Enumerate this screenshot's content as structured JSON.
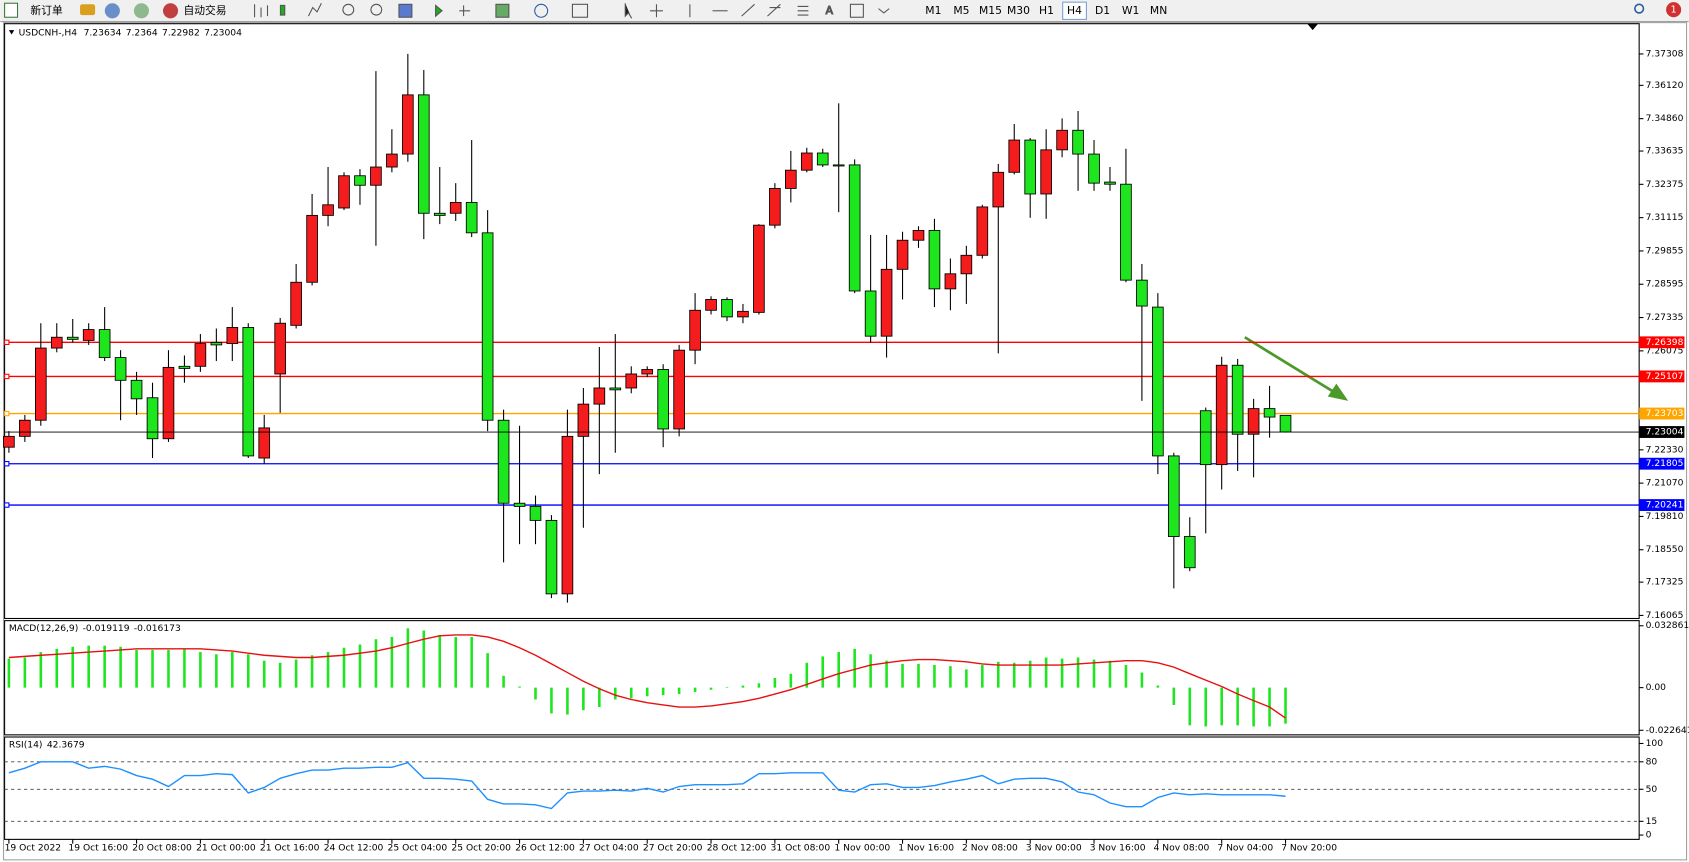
{
  "toolbar": {
    "new_order": "新订单",
    "auto_trading": "自动交易",
    "timeframes": [
      "M1",
      "M5",
      "M15",
      "M30",
      "H1",
      "H4",
      "D1",
      "W1",
      "MN"
    ],
    "alert_count": 1
  },
  "chart_data": [
    {
      "type": "candlestick",
      "title": "USDCNH-,H4",
      "categories": [
        "19 Oct 2022",
        null,
        null,
        null,
        "19 Oct 16:00",
        null,
        null,
        null,
        "20 Oct 08:00",
        null,
        null,
        null,
        "21 Oct 00:00",
        null,
        null,
        null,
        "21 Oct 16:00",
        null,
        null,
        null,
        "24 Oct 12:00",
        null,
        null,
        null,
        "25 Oct 04:00",
        null,
        null,
        null,
        "25 Oct 20:00",
        null,
        null,
        null,
        "26 Oct 12:00",
        null,
        null,
        null,
        "27 Oct 04:00",
        null,
        null,
        null,
        "27 Oct 20:00",
        null,
        null,
        null,
        "28 Oct 12:00",
        null,
        null,
        null,
        "31 Oct 08:00",
        null,
        null,
        null,
        "1 Nov 00:00",
        null,
        null,
        null,
        "1 Nov 16:00",
        null,
        null,
        null,
        "2 Nov 08:00",
        null,
        null,
        null,
        "3 Nov 00:00",
        null,
        null,
        null,
        "3 Nov 16:00",
        null,
        null,
        null,
        "4 Nov 08:00",
        null,
        null,
        null,
        "7 Nov 04:00",
        null,
        null,
        null,
        "7 Nov 20:00"
      ],
      "open": [
        7.2243,
        7.2284,
        7.2345,
        7.2618,
        7.2659,
        7.2647,
        7.2688,
        7.2582,
        7.2496,
        7.243,
        7.2275,
        7.2549,
        7.2549,
        7.2639,
        7.2635,
        7.2696,
        7.2202,
        7.252,
        7.2704,
        7.2867,
        7.312,
        7.3148,
        7.327,
        7.3234,
        7.3303,
        7.3352,
        7.3576,
        7.3128,
        7.3128,
        7.3169,
        7.3054,
        7.2345,
        7.2031,
        7.2019,
        7.1966,
        7.1688,
        7.2284,
        7.2406,
        7.2467,
        7.2467,
        7.252,
        7.2537,
        7.2312,
        7.261,
        7.2761,
        7.2802,
        7.2736,
        7.2753,
        7.3083,
        7.3222,
        7.3291,
        7.3356,
        7.3311,
        7.3311,
        7.2834,
        7.2663,
        7.2916,
        7.3026,
        7.3063,
        7.2842,
        7.2899,
        7.2969,
        7.3152,
        7.3283,
        7.3405,
        7.3201,
        7.3368,
        7.3442,
        7.3352,
        7.3246,
        7.3238,
        7.2875,
        7.2773,
        7.221,
        7.1905,
        7.2381,
        7.2177,
        7.2553,
        7.2292,
        7.2389,
        7.23634
      ],
      "high": [
        7.2304,
        7.2365,
        7.2712,
        7.2712,
        7.2728,
        7.2712,
        7.2773,
        7.261,
        7.2528,
        7.2487,
        7.261,
        7.259,
        7.2671,
        7.2692,
        7.2773,
        7.2712,
        7.2365,
        7.2732,
        7.2936,
        7.3201,
        7.3303,
        7.3283,
        7.3295,
        7.3666,
        7.3446,
        7.3731,
        7.367,
        7.3303,
        7.3242,
        7.3405,
        7.314,
        7.2385,
        7.2324,
        7.206,
        7.1986,
        7.2385,
        7.2467,
        7.2622,
        7.2671,
        7.2549,
        7.2549,
        7.2557,
        7.263,
        7.2826,
        7.2814,
        7.281,
        7.2785,
        7.3087,
        7.3242,
        7.3364,
        7.3376,
        7.3372,
        7.3544,
        7.3332,
        7.3046,
        7.3046,
        7.3058,
        7.3079,
        7.3107,
        7.2957,
        7.3005,
        7.316,
        7.3315,
        7.3466,
        7.3413,
        7.3446,
        7.3487,
        7.3515,
        7.3405,
        7.3303,
        7.3372,
        7.2936,
        7.2826,
        7.2222,
        7.1978,
        7.2393,
        7.2585,
        7.2577,
        7.2426,
        7.2475,
        7.2364
      ],
      "low": [
        7.2222,
        7.2263,
        7.2324,
        7.2602,
        7.2639,
        7.263,
        7.2569,
        7.2345,
        7.2365,
        7.2202,
        7.2263,
        7.2487,
        7.2528,
        7.2569,
        7.2569,
        7.2202,
        7.2181,
        7.2373,
        7.2692,
        7.2855,
        7.3079,
        7.314,
        7.316,
        7.3005,
        7.3283,
        7.3323,
        7.303,
        7.3087,
        7.3099,
        7.3038,
        7.2304,
        7.1807,
        7.1876,
        7.1876,
        7.1672,
        7.1655,
        7.1938,
        7.2141,
        7.2222,
        7.2447,
        7.2508,
        7.2243,
        7.2284,
        7.2557,
        7.2745,
        7.272,
        7.2712,
        7.2745,
        7.3071,
        7.3169,
        7.3283,
        7.3303,
        7.3132,
        7.2826,
        7.2639,
        7.2582,
        7.2802,
        7.2997,
        7.2773,
        7.2761,
        7.2785,
        7.2957,
        7.2598,
        7.3275,
        7.3111,
        7.3107,
        7.334,
        7.3213,
        7.3213,
        7.3213,
        7.2867,
        7.2418,
        7.2141,
        7.1709,
        7.1774,
        7.1917,
        7.2083,
        7.2153,
        7.2129,
        7.2279,
        7.22982
      ],
      "close": [
        7.2284,
        7.2345,
        7.2618,
        7.2659,
        7.2651,
        7.2688,
        7.2582,
        7.2496,
        7.2426,
        7.2275,
        7.2545,
        7.2541,
        7.2635,
        7.263,
        7.2696,
        7.221,
        7.2316,
        7.2712,
        7.2867,
        7.312,
        7.316,
        7.327,
        7.3234,
        7.3303,
        7.3352,
        7.3576,
        7.3128,
        7.312,
        7.3169,
        7.3054,
        7.2345,
        7.2031,
        7.2019,
        7.1966,
        7.1688,
        7.2284,
        7.2406,
        7.2467,
        7.246,
        7.252,
        7.2537,
        7.2312,
        7.261,
        7.2761,
        7.2802,
        7.2736,
        7.2757,
        7.3083,
        7.3222,
        7.3291,
        7.3356,
        7.3311,
        7.3307,
        7.2834,
        7.2663,
        7.2916,
        7.3026,
        7.3063,
        7.2842,
        7.2899,
        7.2969,
        7.3152,
        7.3283,
        7.3405,
        7.3201,
        7.3368,
        7.3442,
        7.3352,
        7.3242,
        7.3238,
        7.2875,
        7.2777,
        7.221,
        7.1905,
        7.1787,
        7.2177,
        7.2553,
        7.2292,
        7.2389,
        7.2357,
        7.23004
      ],
      "up_color": "#f41c1c",
      "down_color": "#1ee61e",
      "levels": [
        {
          "value": 7.26398,
          "color": "#ff0000"
        },
        {
          "value": 7.25107,
          "color": "#ff0000"
        },
        {
          "value": 7.23703,
          "color": "#ffa500"
        },
        {
          "value": 7.21805,
          "color": "#0000ff"
        },
        {
          "value": 7.20241,
          "color": "#0000ff"
        }
      ],
      "ylim": [
        7.1599,
        7.378
      ],
      "yticks": [
        7.37308,
        {
          "value": 7.3612,
          "label": "7.36120"
        },
        {
          "value": 7.3486,
          "label": "7.34860"
        },
        7.33635,
        7.32375,
        7.31115,
        7.29855,
        7.28595,
        7.27335,
        7.26075,
        {
          "value": 7.2233,
          "label": "7.22330"
        },
        {
          "value": 7.2107,
          "label": "7.21070"
        },
        {
          "value": 7.1981,
          "label": "7.19810"
        },
        {
          "value": 7.1855,
          "label": "7.18550"
        },
        7.17325,
        7.16065
      ]
    },
    {
      "type": "macd",
      "title": "MACD(12,26,9)",
      "values": [
        0.0154,
        0.016,
        0.0189,
        0.0206,
        0.0217,
        0.0223,
        0.0223,
        0.0217,
        0.02,
        0.02,
        0.02,
        0.0206,
        0.0189,
        0.0177,
        0.0189,
        0.0177,
        0.0143,
        0.0132,
        0.0149,
        0.0172,
        0.0189,
        0.0212,
        0.0229,
        0.0257,
        0.0269,
        0.0315,
        0.0303,
        0.028,
        0.0269,
        0.0269,
        0.0183,
        0.0063,
        0.0006,
        -0.0063,
        -0.0137,
        -0.0143,
        -0.012,
        -0.0103,
        -0.0063,
        -0.0057,
        -0.0046,
        -0.004,
        -0.0034,
        -0.0023,
        -0.0011,
        0.0003,
        0.0011,
        0.0023,
        0.0051,
        0.0074,
        0.0132,
        0.0166,
        0.0189,
        0.0206,
        0.0177,
        0.0143,
        0.0126,
        0.0126,
        0.012,
        0.0114,
        0.0097,
        0.012,
        0.0137,
        0.0132,
        0.0143,
        0.016,
        0.0154,
        0.016,
        0.0149,
        0.0143,
        0.012,
        0.008,
        0.0011,
        -0.0092,
        -0.02,
        -0.0206,
        -0.02,
        -0.02,
        -0.0206,
        -0.0206,
        -0.019119
      ],
      "signal": [
        0.016,
        0.0166,
        0.0172,
        0.0177,
        0.0183,
        0.0189,
        0.0194,
        0.02,
        0.0206,
        0.0206,
        0.0206,
        0.0206,
        0.0206,
        0.02,
        0.0194,
        0.0183,
        0.0172,
        0.0166,
        0.016,
        0.016,
        0.0166,
        0.0172,
        0.0183,
        0.0194,
        0.0212,
        0.0235,
        0.0257,
        0.0275,
        0.028,
        0.028,
        0.0269,
        0.0246,
        0.0212,
        0.0172,
        0.0126,
        0.008,
        0.0034,
        -0.0006,
        -0.004,
        -0.0063,
        -0.008,
        -0.0092,
        -0.0103,
        -0.0103,
        -0.0097,
        -0.0086,
        -0.0074,
        -0.0057,
        -0.0034,
        -0.0011,
        0.0017,
        0.0046,
        0.0074,
        0.0097,
        0.012,
        0.0132,
        0.0143,
        0.0149,
        0.0149,
        0.0143,
        0.0137,
        0.0126,
        0.012,
        0.012,
        0.012,
        0.012,
        0.012,
        0.0126,
        0.0132,
        0.0137,
        0.0143,
        0.0143,
        0.0132,
        0.0109,
        0.0074,
        0.004,
        0.0006,
        -0.0034,
        -0.0069,
        -0.0103,
        -0.016173
      ],
      "color": "#1ee61e",
      "signal_color": "#e81010",
      "ylim": [
        -0.0245,
        0.035
      ],
      "yticks": [
        0.032861,
        {
          "value": 0,
          "label": "0.00"
        },
        -0.022641
      ]
    },
    {
      "type": "line",
      "title": "RSI(14)",
      "values": [
        68,
        73,
        80,
        80,
        80,
        73,
        75,
        72,
        65,
        61,
        53,
        65,
        65,
        67,
        66,
        46,
        52,
        62,
        67,
        71,
        71,
        73,
        73,
        74,
        74,
        79,
        62,
        62,
        61,
        59,
        39,
        34,
        34,
        33,
        29,
        46,
        48,
        48,
        49,
        48,
        51,
        47,
        53,
        55,
        55,
        55,
        56,
        67,
        67,
        68,
        68,
        68,
        49,
        47,
        55,
        56,
        52,
        52,
        54,
        58,
        61,
        65,
        56,
        61,
        62,
        62,
        58,
        47,
        44,
        35,
        31,
        31,
        41,
        46,
        44,
        45,
        44,
        44,
        44,
        44,
        42.3679
      ],
      "color": "#1e90ff",
      "ylim": [
        0,
        100
      ],
      "yticks": [
        100,
        80,
        50,
        15,
        0
      ]
    }
  ]
}
